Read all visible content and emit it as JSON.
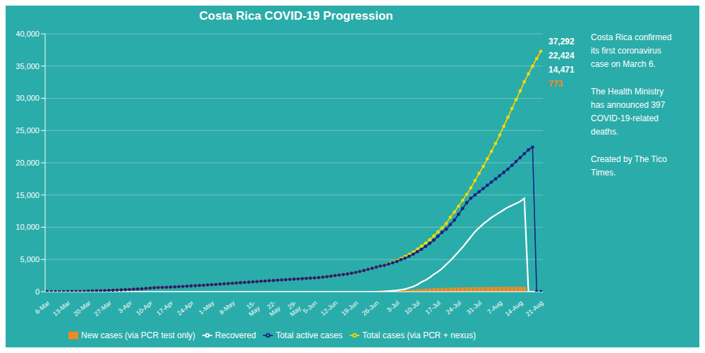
{
  "chart_data": {
    "type": "bar",
    "title": "Costa Rica COVID-19 Progression",
    "categories": [
      "6-Mar",
      null,
      null,
      null,
      null,
      "13-Mar",
      null,
      null,
      null,
      null,
      "20-Mar",
      null,
      null,
      null,
      null,
      "27-Mar",
      null,
      null,
      null,
      null,
      "3-Apr",
      null,
      null,
      null,
      null,
      "10-Apr",
      null,
      null,
      null,
      null,
      "17-Apr",
      null,
      null,
      null,
      null,
      "24-Apr",
      null,
      null,
      null,
      null,
      "1-May",
      null,
      null,
      null,
      null,
      "8-May",
      null,
      null,
      null,
      null,
      "15-\nMay",
      null,
      null,
      null,
      null,
      "22-\nMay",
      null,
      null,
      null,
      null,
      "29-\nMay",
      null,
      null,
      null,
      null,
      "5-Jun",
      null,
      null,
      null,
      null,
      "12-Jun",
      null,
      null,
      null,
      null,
      "19-Jun",
      null,
      null,
      null,
      null,
      "26-Jun",
      null,
      null,
      null,
      null,
      "3-Jul",
      null,
      null,
      null,
      null,
      "10-Jul",
      null,
      null,
      null,
      null,
      "17-Jul",
      null,
      null,
      null,
      null,
      "24-Jul",
      null,
      null,
      null,
      null,
      "31-Jul",
      null,
      null,
      null,
      null,
      "7-Aug",
      null,
      null,
      null,
      null,
      "14-Aug",
      null,
      null,
      null,
      null,
      "21-Aug"
    ],
    "series": [
      {
        "name": "New cases (via PCR test only)",
        "type": "bar",
        "color": "#f5891f",
        "values": [
          0,
          0,
          0,
          0,
          0,
          0,
          0,
          0,
          0,
          0,
          0,
          0,
          0,
          0,
          0,
          0,
          0,
          0,
          0,
          0,
          0,
          0,
          0,
          0,
          0,
          0,
          0,
          0,
          0,
          0,
          0,
          0,
          0,
          0,
          0,
          0,
          0,
          0,
          0,
          0,
          0,
          0,
          0,
          0,
          0,
          0,
          0,
          0,
          0,
          0,
          0,
          0,
          0,
          0,
          0,
          0,
          0,
          0,
          0,
          0,
          0,
          0,
          0,
          0,
          0,
          0,
          0,
          0,
          0,
          0,
          0,
          0,
          0,
          0,
          0,
          0,
          0,
          0,
          0,
          0,
          0,
          200,
          200,
          200,
          200,
          200,
          250,
          280,
          310,
          340,
          380,
          420,
          460,
          500,
          540,
          560,
          580,
          600,
          620,
          640,
          660,
          680,
          690,
          700,
          710,
          720,
          730,
          740,
          750,
          755,
          760,
          765,
          768,
          770,
          771,
          772,
          773,
          0,
          0,
          0,
          0
        ]
      },
      {
        "name": "Total cases (via PCR + nexus)",
        "type": "line",
        "color": "#f5d800",
        "marker": "o",
        "values": [
          1,
          1,
          1,
          13,
          22,
          26,
          35,
          41,
          50,
          69,
          93,
          117,
          134,
          158,
          177,
          201,
          231,
          263,
          284,
          314,
          348,
          384,
          416,
          449,
          502,
          558,
          613,
          649,
          679,
          695,
          713,
          745,
          779,
          813,
          855,
          899,
          931,
          961,
          1000,
          1044,
          1086,
          1130,
          1175,
          1216,
          1257,
          1301,
          1355,
          1395,
          1436,
          1478,
          1527,
          1570,
          1615,
          1658,
          1700,
          1744,
          1785,
          1828,
          1869,
          1908,
          1945,
          1984,
          2023,
          2059,
          2102,
          2144,
          2193,
          2258,
          2335,
          2407,
          2491,
          2575,
          2669,
          2762,
          2870,
          2993,
          3131,
          3284,
          3458,
          3631,
          3806,
          3982,
          4163,
          4380,
          4609,
          4842,
          5148,
          5461,
          5792,
          6163,
          6595,
          7050,
          7529,
          8071,
          8640,
          9269,
          9913,
          10564,
          11534,
          12374,
          13272,
          14171,
          15103,
          16108,
          17246,
          18356,
          19429,
          20603,
          21764,
          22983,
          24298,
          25664,
          27069,
          28436,
          29796,
          31126,
          32556,
          33790,
          34973,
          36151,
          37292
        ]
      },
      {
        "name": "Total active cases",
        "type": "line",
        "color": "#1a237e",
        "marker": "o",
        "values": [
          1,
          1,
          1,
          13,
          22,
          26,
          35,
          41,
          50,
          69,
          93,
          117,
          134,
          158,
          177,
          201,
          231,
          263,
          284,
          314,
          348,
          384,
          416,
          449,
          502,
          558,
          613,
          649,
          679,
          695,
          713,
          745,
          779,
          813,
          855,
          899,
          931,
          961,
          1000,
          1044,
          1086,
          1130,
          1175,
          1216,
          1257,
          1301,
          1355,
          1395,
          1436,
          1478,
          1527,
          1570,
          1615,
          1658,
          1700,
          1744,
          1785,
          1828,
          1869,
          1908,
          1945,
          1984,
          2023,
          2059,
          2102,
          2144,
          2193,
          2258,
          2335,
          2407,
          2491,
          2575,
          2669,
          2762,
          2870,
          2993,
          3131,
          3284,
          3458,
          3631,
          3806,
          3982,
          4100,
          4300,
          4500,
          4700,
          4980,
          5200,
          5500,
          5830,
          6200,
          6580,
          7020,
          7500,
          8000,
          8600,
          9200,
          9700,
          10400,
          11100,
          12000,
          12900,
          13800,
          14500,
          15000,
          15500,
          16000,
          16500,
          17000,
          17500,
          18000,
          18500,
          19000,
          19600,
          20200,
          20800,
          21400,
          22000,
          22424,
          0,
          0
        ]
      },
      {
        "name": "Recovered",
        "type": "line",
        "color": "white",
        "values": [
          0,
          0,
          0,
          0,
          0,
          0,
          0,
          0,
          0,
          0,
          0,
          0,
          0,
          0,
          0,
          0,
          0,
          0,
          0,
          0,
          0,
          0,
          0,
          0,
          0,
          0,
          0,
          0,
          0,
          0,
          0,
          0,
          0,
          0,
          0,
          0,
          0,
          0,
          0,
          0,
          0,
          0,
          0,
          0,
          0,
          0,
          0,
          0,
          0,
          0,
          0,
          0,
          0,
          0,
          0,
          0,
          0,
          0,
          0,
          0,
          0,
          0,
          0,
          0,
          0,
          0,
          0,
          0,
          0,
          0,
          0,
          0,
          0,
          0,
          0,
          0,
          0,
          0,
          0,
          0,
          0,
          0,
          50,
          100,
          150,
          200,
          300,
          400,
          600,
          800,
          1100,
          1500,
          1800,
          2200,
          2700,
          3100,
          3600,
          4200,
          4800,
          5500,
          6200,
          6900,
          7700,
          8500,
          9300,
          9900,
          10500,
          11000,
          11500,
          11900,
          12300,
          12700,
          13100,
          13400,
          13700,
          14000,
          14471,
          0,
          0,
          0,
          0
        ]
      }
    ],
    "ylim": [
      0,
      40000
    ],
    "yticks": [
      0,
      {
        "value": 5000,
        "label": "5,000"
      },
      {
        "value": 10000,
        "label": "10,000"
      },
      {
        "value": 15000,
        "label": "15,000"
      },
      {
        "value": 20000,
        "label": "20,000"
      },
      {
        "value": 25000,
        "label": "25,000"
      },
      {
        "value": 30000,
        "label": "30,000"
      },
      {
        "value": 35000,
        "label": "35,000"
      },
      {
        "value": 40000,
        "label": "40,000"
      }
    ],
    "grid": true,
    "legend": "bottom",
    "annotations": [
      {
        "text": "Costa Rica confirmed\nits first coronavirus\ncase on March 6.\n\nThe Health Ministry\nhas announced 397\nCOVID-19-related\ndeaths.\n\nCreated by The Tico\nTimes."
      },
      {
        "text": "37,292"
      },
      {
        "text": "22,424"
      },
      {
        "text": "14,471"
      },
      {
        "text": "773",
        "color": "#f5891f"
      }
    ]
  }
}
